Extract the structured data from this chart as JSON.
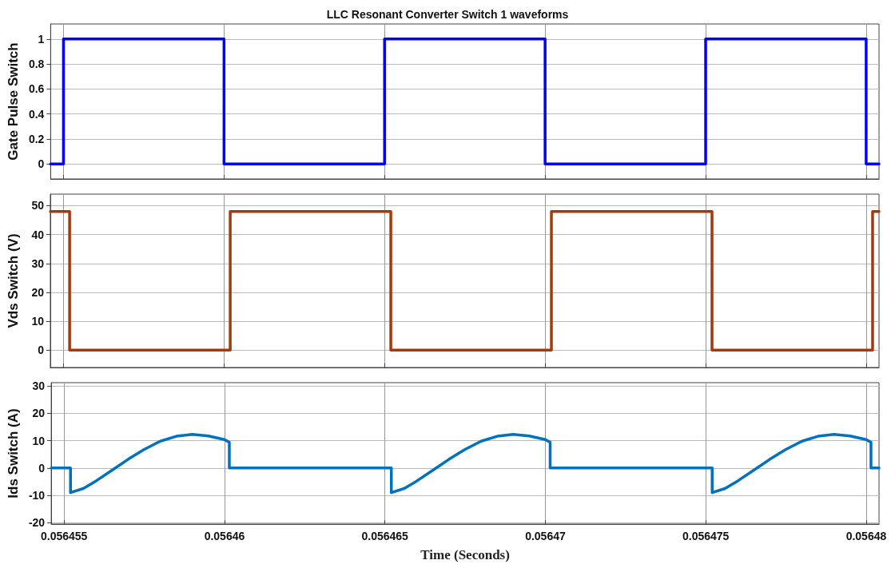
{
  "chart_data": [
    {
      "type": "line",
      "title": "LLC Resonant Converter Switch 1 waveforms",
      "ylabel": "Gate Pulse Switch",
      "xlim": [
        0.0564546,
        0.0564804
      ],
      "xticks": [
        0.056455,
        0.05646,
        0.056465,
        0.05647,
        0.056475,
        0.05648
      ],
      "ylim": [
        -0.12,
        1.12
      ],
      "yticks": [
        0,
        0.2,
        0.4,
        0.6,
        0.8,
        1
      ],
      "grid": true,
      "tick_labels": "y",
      "marker": "none",
      "line_style": "solid",
      "series": [
        {
          "color": "#0000ff",
          "x": [
            0.0564546,
            0.056455,
            0.056455,
            0.05646,
            0.05646,
            0.056465,
            0.056465,
            0.05647,
            0.05647,
            0.056475,
            0.056475,
            0.05648,
            0.05648,
            0.0564804
          ],
          "values": [
            0,
            0,
            1,
            1,
            0,
            0,
            1,
            1,
            0,
            0,
            1,
            1,
            0,
            0
          ]
        }
      ]
    },
    {
      "type": "line",
      "ylabel": "Vds Switch (V)",
      "xlim": [
        0.0564546,
        0.0564804
      ],
      "xticks": [
        0.056455,
        0.05646,
        0.056465,
        0.05647,
        0.056475,
        0.05648
      ],
      "ylim": [
        -6,
        54
      ],
      "yticks": [
        0,
        10,
        20,
        30,
        40,
        50
      ],
      "grid": true,
      "tick_labels": "y",
      "marker": "none",
      "line_style": "solid",
      "series": [
        {
          "color": "#a33a0f",
          "x": [
            0.0564546,
            0.0564552,
            0.0564552,
            0.0564602,
            0.0564602,
            0.0564652,
            0.0564652,
            0.0564702,
            0.0564702,
            0.0564752,
            0.0564752,
            0.0564802,
            0.0564802,
            0.0564804
          ],
          "values": [
            48,
            48,
            0,
            0,
            48,
            48,
            0,
            0,
            48,
            48,
            0,
            0,
            48,
            48
          ]
        }
      ]
    },
    {
      "type": "line",
      "xlabel": "Time (Seconds)",
      "ylabel": "Ids Switch (A)",
      "xlim": [
        0.0564546,
        0.0564804
      ],
      "xticks": [
        0.056455,
        0.05646,
        0.056465,
        0.05647,
        0.056475,
        0.05648
      ],
      "ylim": [
        -20.5,
        31.2
      ],
      "yticks": [
        -20,
        -10,
        0,
        10,
        20,
        30
      ],
      "grid": true,
      "marker": "none",
      "line_style": "solid",
      "series": [
        {
          "color": "#0072bd",
          "x": [
            0.0564546,
            0.0564552,
            0.0564552,
            0.0564556,
            0.056456,
            0.0564566,
            0.056457,
            0.0564575,
            0.056458,
            0.0564585,
            0.056459,
            0.0564595,
            0.05646,
            0.05646015,
            0.05646015,
            0.0564652,
            0.0564652,
            0.0564656,
            0.056466,
            0.0564666,
            0.056467,
            0.0564675,
            0.056468,
            0.0564685,
            0.056469,
            0.0564695,
            0.05647,
            0.05647015,
            0.05647015,
            0.0564752,
            0.0564752,
            0.0564756,
            0.056476,
            0.0564766,
            0.056477,
            0.0564775,
            0.056478,
            0.0564785,
            0.056479,
            0.0564795,
            0.05648,
            0.05648015,
            0.05648015,
            0.0564804
          ],
          "values": [
            0,
            0,
            -9,
            -7.5,
            -4.7,
            0,
            3.2,
            6.8,
            9.8,
            11.6,
            12.3,
            11.7,
            10.4,
            9.4,
            0,
            0,
            -9,
            -7.5,
            -4.7,
            0,
            3.2,
            6.8,
            9.8,
            11.6,
            12.3,
            11.7,
            10.4,
            9.4,
            0,
            0,
            -9,
            -7.5,
            -4.7,
            0,
            3.2,
            6.8,
            9.8,
            11.6,
            12.3,
            11.7,
            10.4,
            9.4,
            0,
            0
          ]
        }
      ]
    }
  ]
}
